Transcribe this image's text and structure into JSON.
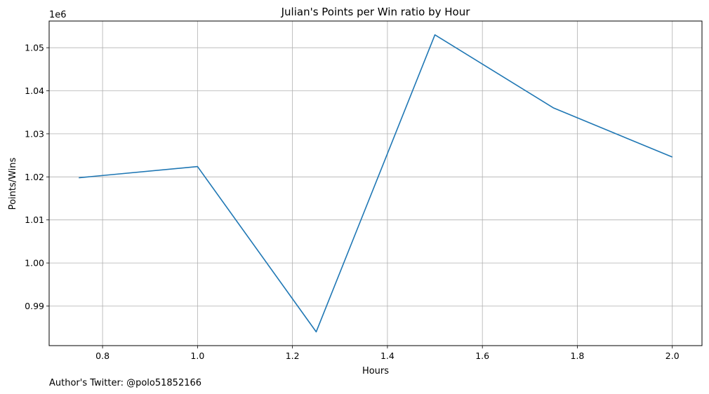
{
  "chart_data": {
    "type": "line",
    "title": "Julian's Points per Win ratio by Hour",
    "xlabel": "Hours",
    "ylabel": "Points/Wins",
    "y_offset_label": "1e6",
    "footnote": "Author's Twitter: @polo51852166",
    "xlim": [
      0.6875,
      2.0625
    ],
    "ylim": [
      980800,
      1056200
    ],
    "x_ticks": [
      0.8,
      1.0,
      1.2,
      1.4,
      1.6,
      1.8,
      2.0
    ],
    "x_tick_labels": [
      "0.8",
      "1.0",
      "1.2",
      "1.4",
      "1.6",
      "1.8",
      "2.0"
    ],
    "y_ticks": [
      990000,
      1000000,
      1010000,
      1020000,
      1030000,
      1040000,
      1050000
    ],
    "y_tick_labels": [
      "0.99",
      "1.00",
      "1.01",
      "1.02",
      "1.03",
      "1.04",
      "1.05"
    ],
    "grid": true,
    "line_color": "#1f77b4",
    "series": [
      {
        "x": [
          0.75,
          1.0,
          1.25,
          1.5,
          1.75,
          2.0
        ],
        "values": [
          1019800,
          1022400,
          984000,
          1053000,
          1036000,
          1024600
        ]
      }
    ]
  }
}
